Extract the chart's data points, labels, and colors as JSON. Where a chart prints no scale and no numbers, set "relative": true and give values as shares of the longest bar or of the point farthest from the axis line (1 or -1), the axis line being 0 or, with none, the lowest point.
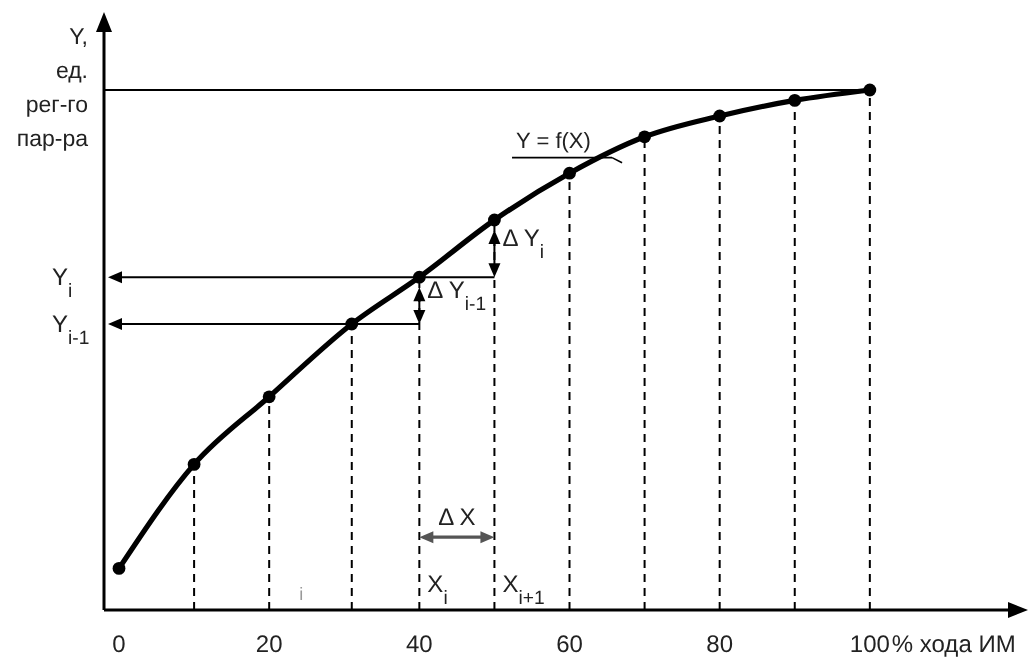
{
  "chart_data": {
    "type": "line",
    "relative": true,
    "xlabel": "% хода ИМ",
    "ylabel": "Y, ед. рег-го пар-ра",
    "xlim": [
      -2,
      120
    ],
    "xticks": [
      0,
      20,
      40,
      60,
      80,
      100
    ],
    "marker": "circle",
    "line_style": "solid",
    "series": [
      {
        "color": "#000000",
        "x": [
          0,
          10,
          20,
          31,
          40,
          50,
          60,
          70,
          80,
          90,
          100
        ],
        "values": [
          0.08,
          0.28,
          0.41,
          0.55,
          0.64,
          0.75,
          0.84,
          0.91,
          0.95,
          0.98,
          1
        ]
      }
    ],
    "ref_lines": [
      {
        "axis": "x",
        "value": 10,
        "line_style": "dashed"
      },
      {
        "axis": "x",
        "value": 20,
        "line_style": "dashed"
      },
      {
        "axis": "x",
        "value": 31,
        "line_style": "dashed"
      },
      {
        "axis": "x",
        "value": 40,
        "line_style": "dashed"
      },
      {
        "axis": "x",
        "value": 50,
        "line_style": "dashed"
      },
      {
        "axis": "x",
        "value": 60,
        "line_style": "dashed"
      },
      {
        "axis": "x",
        "value": 70,
        "line_style": "dashed"
      },
      {
        "axis": "x",
        "value": 80,
        "line_style": "dashed"
      },
      {
        "axis": "x",
        "value": 90,
        "line_style": "dashed"
      },
      {
        "axis": "x",
        "value": 100,
        "line_style": "dashed"
      },
      {
        "axis": "y",
        "value": 1,
        "line_style": "solid"
      }
    ],
    "annotations": [
      {
        "text": "Y = f(X)",
        "x": 63,
        "y": 0.87
      },
      "Y$_{i}$",
      "Y$_{i-1}$",
      {
        "text": "Δ Y$_{i}$",
        "x": 50,
        "y": 0.7
      },
      {
        "text": "Δ Y$_{i-1}$",
        "x": 40,
        "y": 0.6
      },
      "Δ X",
      {
        "text": "X$_{i}$",
        "x": 40,
        "y": 0.02
      },
      {
        "text": "X$_{i+1}$",
        "x": 50,
        "y": 0.02
      },
      "i"
    ]
  }
}
